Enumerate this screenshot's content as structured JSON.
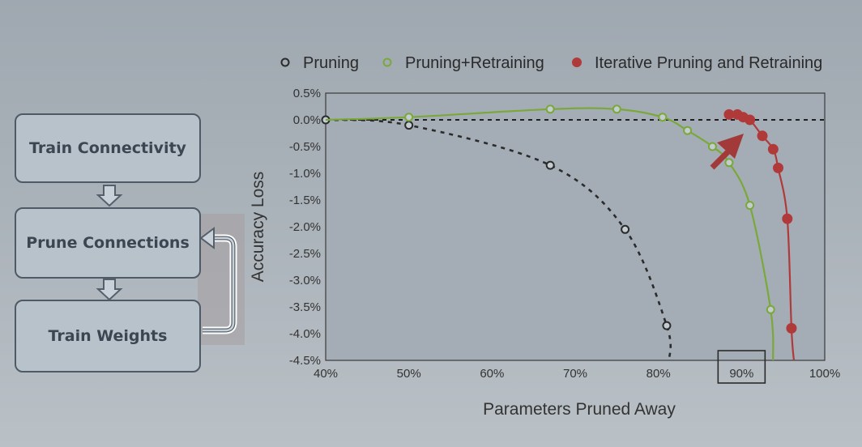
{
  "flowchart": {
    "steps": [
      "Train Connectivity",
      "Prune Connections",
      "Train Weights"
    ]
  },
  "chart_data": {
    "type": "line",
    "xlabel": "Parameters Pruned Away",
    "ylabel": "Accuracy Loss",
    "xlim": [
      40,
      100
    ],
    "ylim": [
      -4.5,
      0.5
    ],
    "x_ticks": [
      "40%",
      "50%",
      "60%",
      "70%",
      "80%",
      "90%",
      "100%"
    ],
    "y_ticks": [
      "0.5%",
      "0.0%",
      "-0.5%",
      "-1.0%",
      "-1.5%",
      "-2.0%",
      "-2.5%",
      "-3.0%",
      "-3.5%",
      "-4.0%",
      "-4.5%"
    ],
    "highlighted_tick": "90%",
    "reference_line_y": 0.0,
    "legend_position": "top",
    "series": [
      {
        "name": "Pruning",
        "color": "#2b2b2b",
        "marker": "open-circle",
        "line_style": "dashed",
        "points": [
          [
            40,
            0.0
          ],
          [
            50,
            -0.1
          ],
          [
            67,
            -0.85
          ],
          [
            76,
            -2.05
          ],
          [
            81,
            -3.85
          ]
        ]
      },
      {
        "name": "Pruning+Retraining",
        "color": "#7aa83a",
        "marker": "open-circle",
        "line_style": "solid",
        "points": [
          [
            40,
            0.0
          ],
          [
            50,
            0.05
          ],
          [
            67,
            0.2
          ],
          [
            75,
            0.2
          ],
          [
            80.5,
            0.05
          ],
          [
            83.5,
            -0.2
          ],
          [
            86.5,
            -0.5
          ],
          [
            88.5,
            -0.8
          ],
          [
            91,
            -1.6
          ],
          [
            93.5,
            -3.55
          ]
        ]
      },
      {
        "name": "Iterative Pruning and Retraining",
        "color": "#b03a3a",
        "marker": "filled-circle",
        "line_style": "solid",
        "points": [
          [
            88.5,
            0.1
          ],
          [
            89.5,
            0.1
          ],
          [
            90.2,
            0.05
          ],
          [
            91,
            0.0
          ],
          [
            92.5,
            -0.3
          ],
          [
            93.8,
            -0.55
          ],
          [
            94.4,
            -0.9
          ],
          [
            95.5,
            -1.85
          ],
          [
            96,
            -3.9
          ]
        ]
      }
    ]
  }
}
